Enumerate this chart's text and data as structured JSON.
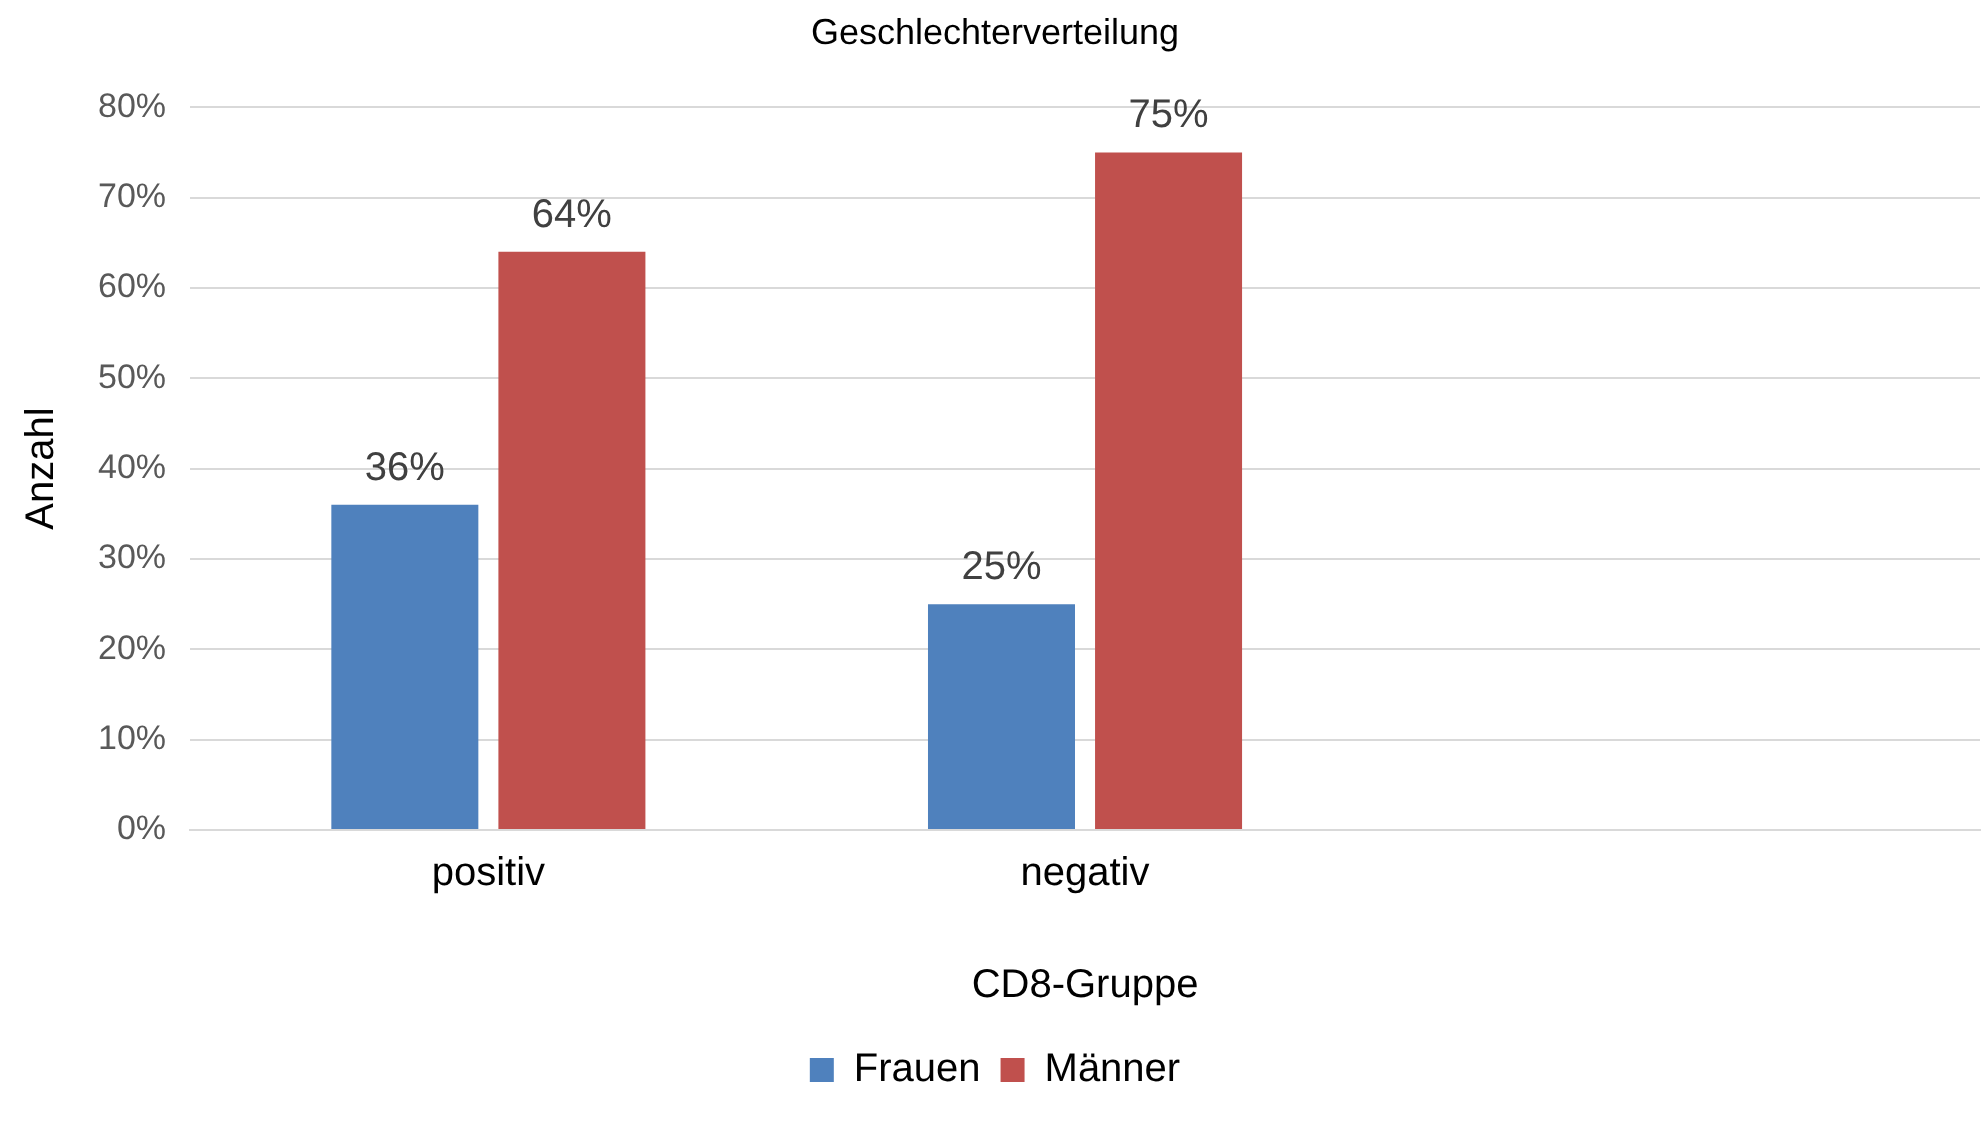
{
  "chart_data": {
    "type": "bar",
    "title": "Geschlechterverteilung",
    "xlabel": "CD8-Gruppe",
    "ylabel": "Anzahl",
    "categories": [
      "positiv",
      "negativ",
      null
    ],
    "series": [
      {
        "name": "Frauen",
        "color": "#4f81bd",
        "values": [
          36,
          25,
          null
        ],
        "value_labels": [
          "36%",
          "25%",
          null
        ]
      },
      {
        "name": "Männer",
        "color": "#c0504d",
        "values": [
          64,
          75,
          null
        ],
        "value_labels": [
          "64%",
          "75%",
          null
        ]
      }
    ],
    "ylim": [
      0,
      80
    ],
    "yticks": [
      {
        "value": 0,
        "label": "0%"
      },
      {
        "value": 10,
        "label": "10%"
      },
      {
        "value": 20,
        "label": "20%"
      },
      {
        "value": 30,
        "label": "30%"
      },
      {
        "value": 40,
        "label": "40%"
      },
      {
        "value": 50,
        "label": "50%"
      },
      {
        "value": 60,
        "label": "60%"
      },
      {
        "value": 70,
        "label": "70%"
      },
      {
        "value": 80,
        "label": "80%"
      }
    ],
    "grid": "y",
    "legend": "bottom"
  }
}
